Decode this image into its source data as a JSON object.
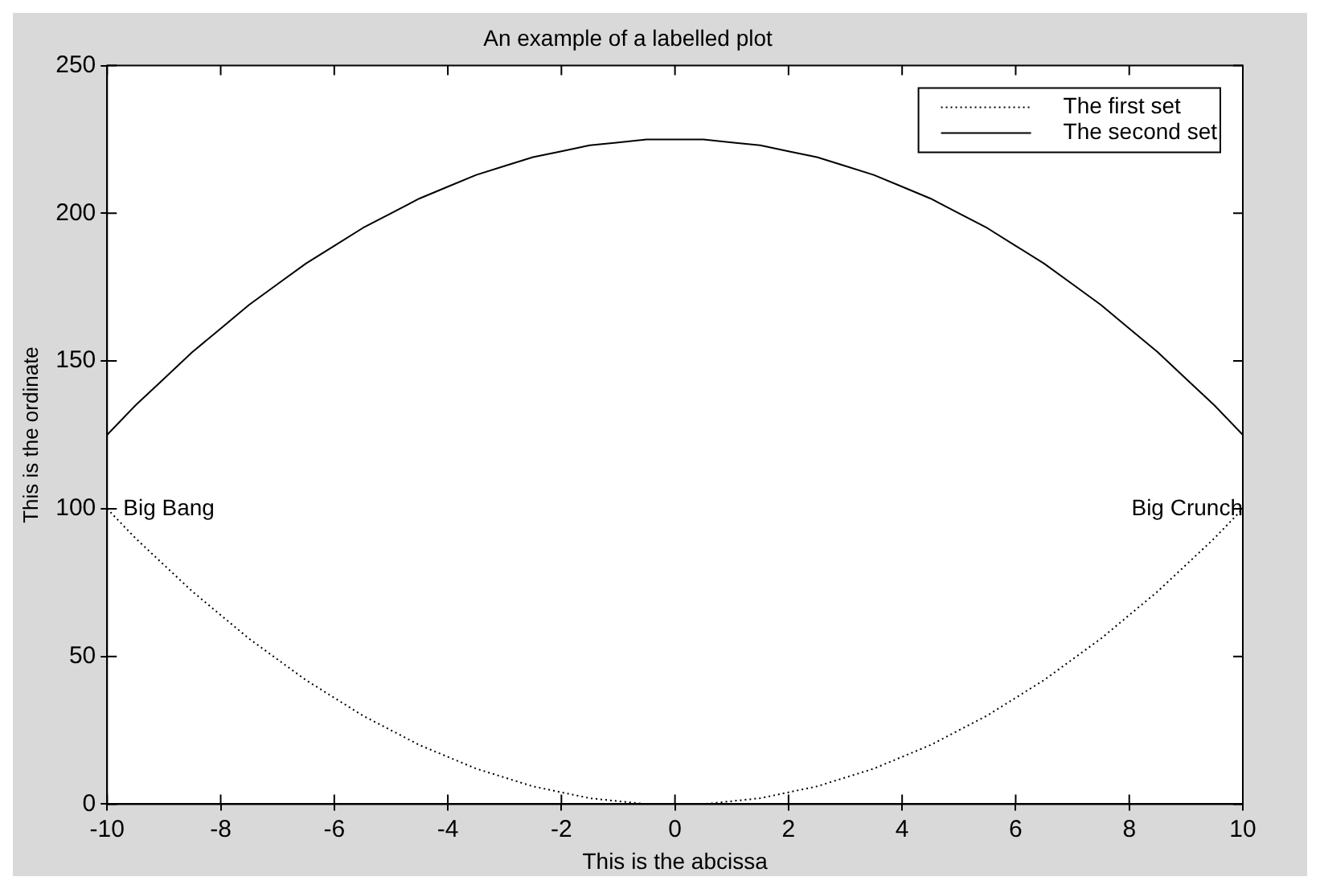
{
  "chart_data": {
    "type": "line",
    "title": "An example of a labelled plot",
    "xlabel": "This is the abcissa",
    "ylabel": "This is the ordinate",
    "x": [
      -10,
      -9.5,
      -9,
      -8.5,
      -8,
      -7.5,
      -7,
      -6.5,
      -6,
      -5.5,
      -5,
      -4.5,
      -4,
      -3.5,
      -3,
      -2.5,
      -2,
      -1.5,
      -1,
      -0.5,
      0,
      0.5,
      1,
      1.5,
      2,
      2.5,
      3,
      3.5,
      4,
      4.5,
      5,
      5.5,
      6,
      6.5,
      7,
      7.5,
      8,
      8.5,
      9,
      9.5,
      10
    ],
    "series": [
      {
        "name": "The first set",
        "color": "#000000",
        "line_style": "dotted",
        "values": [
          100,
          90,
          81,
          72,
          64,
          56,
          49,
          42,
          36,
          30,
          25,
          20,
          16,
          12,
          9,
          6,
          4,
          2,
          1,
          0,
          0,
          0,
          1,
          2,
          4,
          6,
          9,
          12,
          16,
          20,
          25,
          30,
          36,
          42,
          49,
          56,
          64,
          72,
          81,
          90,
          100
        ]
      },
      {
        "name": "The second set",
        "color": "#000000",
        "line_style": "solid",
        "values": [
          125,
          135,
          144,
          153,
          161,
          169,
          176,
          183,
          189,
          195,
          200,
          205,
          209,
          213,
          216,
          219,
          221,
          223,
          224,
          225,
          225,
          225,
          224,
          223,
          221,
          219,
          216,
          213,
          209,
          205,
          200,
          195,
          189,
          183,
          176,
          169,
          161,
          153,
          144,
          135,
          125
        ]
      }
    ],
    "annotations": [
      {
        "text": "Big Bang",
        "x": -10,
        "y": 100
      },
      {
        "text": "Big Crunch",
        "x": 10,
        "y": 100
      }
    ],
    "xlim": [
      -10,
      10
    ],
    "xticks": [
      -10,
      -8,
      -6,
      -4,
      -2,
      0,
      2,
      4,
      6,
      8,
      10
    ],
    "ylim": [
      0,
      250
    ],
    "yticks": [
      0,
      50,
      100,
      150,
      200,
      250
    ],
    "grid": false,
    "legend": "top right",
    "marker": "none"
  }
}
